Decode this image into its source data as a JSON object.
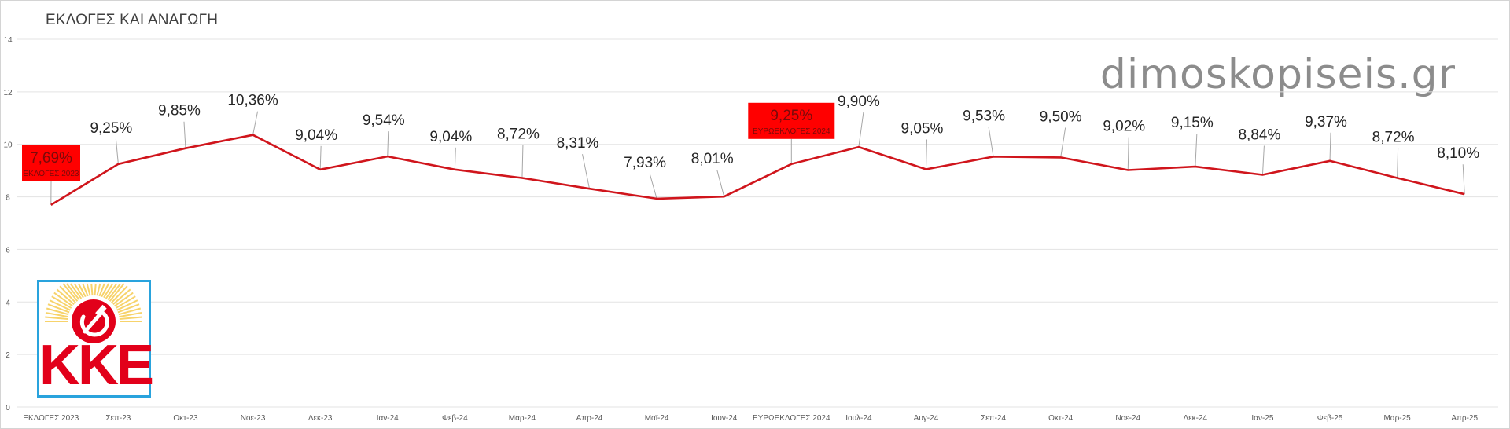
{
  "header": {
    "title": "ΕΚΛΟΓΕΣ ΚΑΙ ΑΝΑΓΩΓΗ"
  },
  "watermark": "dimoskopiseis.gr",
  "logo": {
    "text": "KKE"
  },
  "colors": {
    "line": "#d0151c",
    "callout_fill": "#ff0000",
    "callout_text": "#7a0a0a",
    "gridline": "#e3e3e3",
    "axis_text": "#595959",
    "label_text": "#262626",
    "logo_border": "#29a3dd"
  },
  "chart_data": {
    "type": "line",
    "title": "ΕΚΛΟΓΕΣ ΚΑΙ ΑΝΑΓΩΓΗ",
    "xlabel": "",
    "ylabel": "",
    "ylim": [
      0,
      14
    ],
    "yticks": [
      0,
      2,
      4,
      6,
      8,
      10,
      12,
      14
    ],
    "grid": true,
    "legend": "none",
    "categories": [
      "ΕΚΛΟΓΕΣ 2023",
      "Σεπ-23",
      "Οκτ-23",
      "Νοε-23",
      "Δεκ-23",
      "Ιαν-24",
      "Φεβ-24",
      "Μαρ-24",
      "Απρ-24",
      "Μαϊ-24",
      "Ιουν-24",
      "ΕΥΡΩΕΚΛΟΓΕΣ 2024",
      "Ιουλ-24",
      "Αυγ-24",
      "Σεπ-24",
      "Οκτ-24",
      "Νοε-24",
      "Δεκ-24",
      "Ιαν-25",
      "Φεβ-25",
      "Μαρ-25",
      "Απρ-25"
    ],
    "series": [
      {
        "name": "KKE",
        "values": [
          7.69,
          9.25,
          9.85,
          10.36,
          9.04,
          9.54,
          9.04,
          8.72,
          8.31,
          7.93,
          8.01,
          9.25,
          9.9,
          9.05,
          9.53,
          9.5,
          9.02,
          9.15,
          8.84,
          9.37,
          8.72,
          8.1
        ],
        "labels": [
          "7,69%",
          "9,25%",
          "9,85%",
          "10,36%",
          "9,04%",
          "9,54%",
          "9,04%",
          "8,72%",
          "8,31%",
          "7,93%",
          "8,01%",
          "9,25%",
          "9,90%",
          "9,05%",
          "9,53%",
          "9,50%",
          "9,02%",
          "9,15%",
          "8,84%",
          "9,37%",
          "8,72%",
          "8,10%"
        ]
      }
    ],
    "annotations": [
      {
        "index": 0,
        "value_label": "7,69%",
        "caption": "ΕΚΛΟΓΕΣ 2023"
      },
      {
        "index": 11,
        "value_label": "9,25%",
        "caption": "ΕΥΡΩΕΚΛΟΓΕΣ 2024"
      }
    ]
  }
}
